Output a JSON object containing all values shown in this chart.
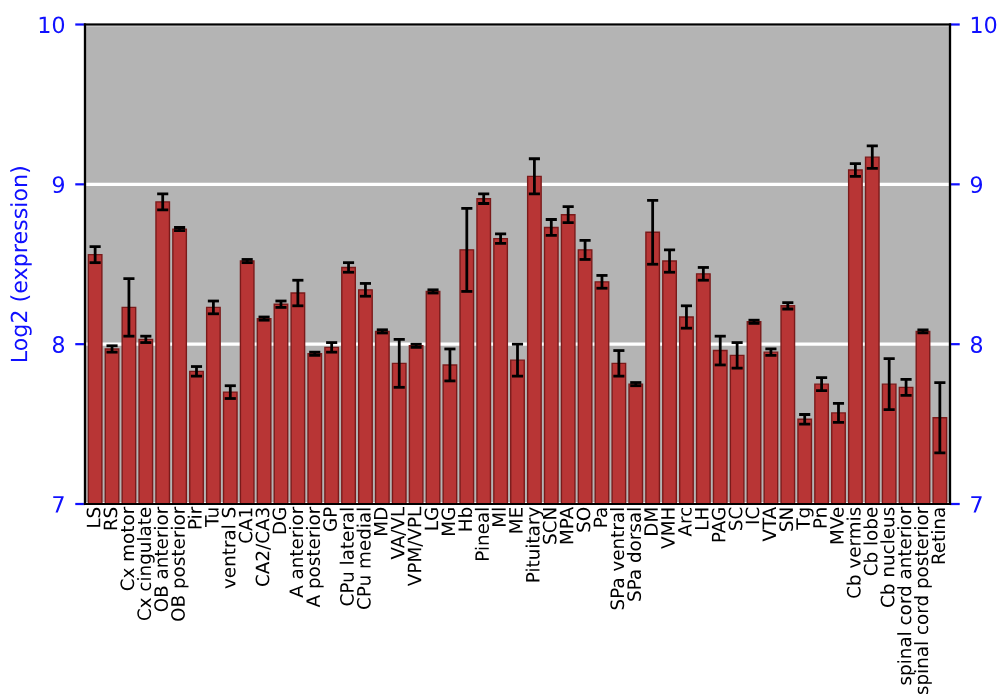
{
  "chart_data": {
    "type": "bar",
    "ylabel": "Log2 (expression)",
    "categories": [
      "LS",
      "RS",
      "Cx motor",
      "Cx cingulate",
      "OB anterior",
      "OB posterior",
      "Pir",
      "Tu",
      "ventral S",
      "CA1",
      "CA2/CA3",
      "DG",
      "A anterior",
      "A posterior",
      "GP",
      "CPu lateral",
      "CPu medial",
      "MD",
      "VA/VL",
      "VPM/VPL",
      "LG",
      "MG",
      "Hb",
      "Pineal",
      "Ml",
      "ME",
      "Pituitary",
      "SCN",
      "MPA",
      "SO",
      "Pa",
      "SPa ventral",
      "SPa dorsal",
      "DM",
      "VMH",
      "Arc",
      "LH",
      "PAG",
      "SC",
      "IC",
      "VTA",
      "SN",
      "Tg",
      "Pn",
      "MVe",
      "Cb vermis",
      "Cb lobe",
      "Cb nucleus",
      "spinal cord anterior",
      "spinal cord posterior",
      "Retina"
    ],
    "values": [
      8.56,
      7.97,
      8.23,
      8.03,
      8.89,
      8.72,
      7.83,
      8.23,
      7.7,
      8.52,
      8.16,
      8.25,
      8.32,
      7.94,
      7.98,
      8.48,
      8.34,
      8.08,
      7.88,
      7.99,
      8.33,
      7.87,
      8.59,
      8.91,
      8.66,
      7.9,
      9.05,
      8.73,
      8.81,
      8.59,
      8.39,
      7.88,
      7.75,
      8.7,
      8.52,
      8.17,
      8.44,
      7.96,
      7.93,
      8.14,
      7.95,
      8.24,
      7.53,
      7.75,
      7.57,
      9.09,
      9.17,
      7.75,
      7.73,
      8.08,
      7.54
    ],
    "errors": [
      0.05,
      0.02,
      0.18,
      0.02,
      0.05,
      0.01,
      0.03,
      0.04,
      0.04,
      0.01,
      0.01,
      0.02,
      0.08,
      0.01,
      0.03,
      0.03,
      0.04,
      0.01,
      0.15,
      0.01,
      0.01,
      0.1,
      0.26,
      0.03,
      0.03,
      0.1,
      0.11,
      0.05,
      0.05,
      0.06,
      0.04,
      0.08,
      0.01,
      0.2,
      0.07,
      0.07,
      0.04,
      0.09,
      0.08,
      0.01,
      0.02,
      0.02,
      0.03,
      0.04,
      0.06,
      0.04,
      0.07,
      0.16,
      0.05,
      0.01,
      0.22
    ],
    "color": "#b83535",
    "ylim": [
      7,
      10
    ],
    "yticks": [
      7,
      8,
      9,
      10
    ],
    "y2lim": [
      7,
      10
    ],
    "y2ticks": [
      7,
      8,
      9,
      10
    ],
    "grid": "y"
  }
}
